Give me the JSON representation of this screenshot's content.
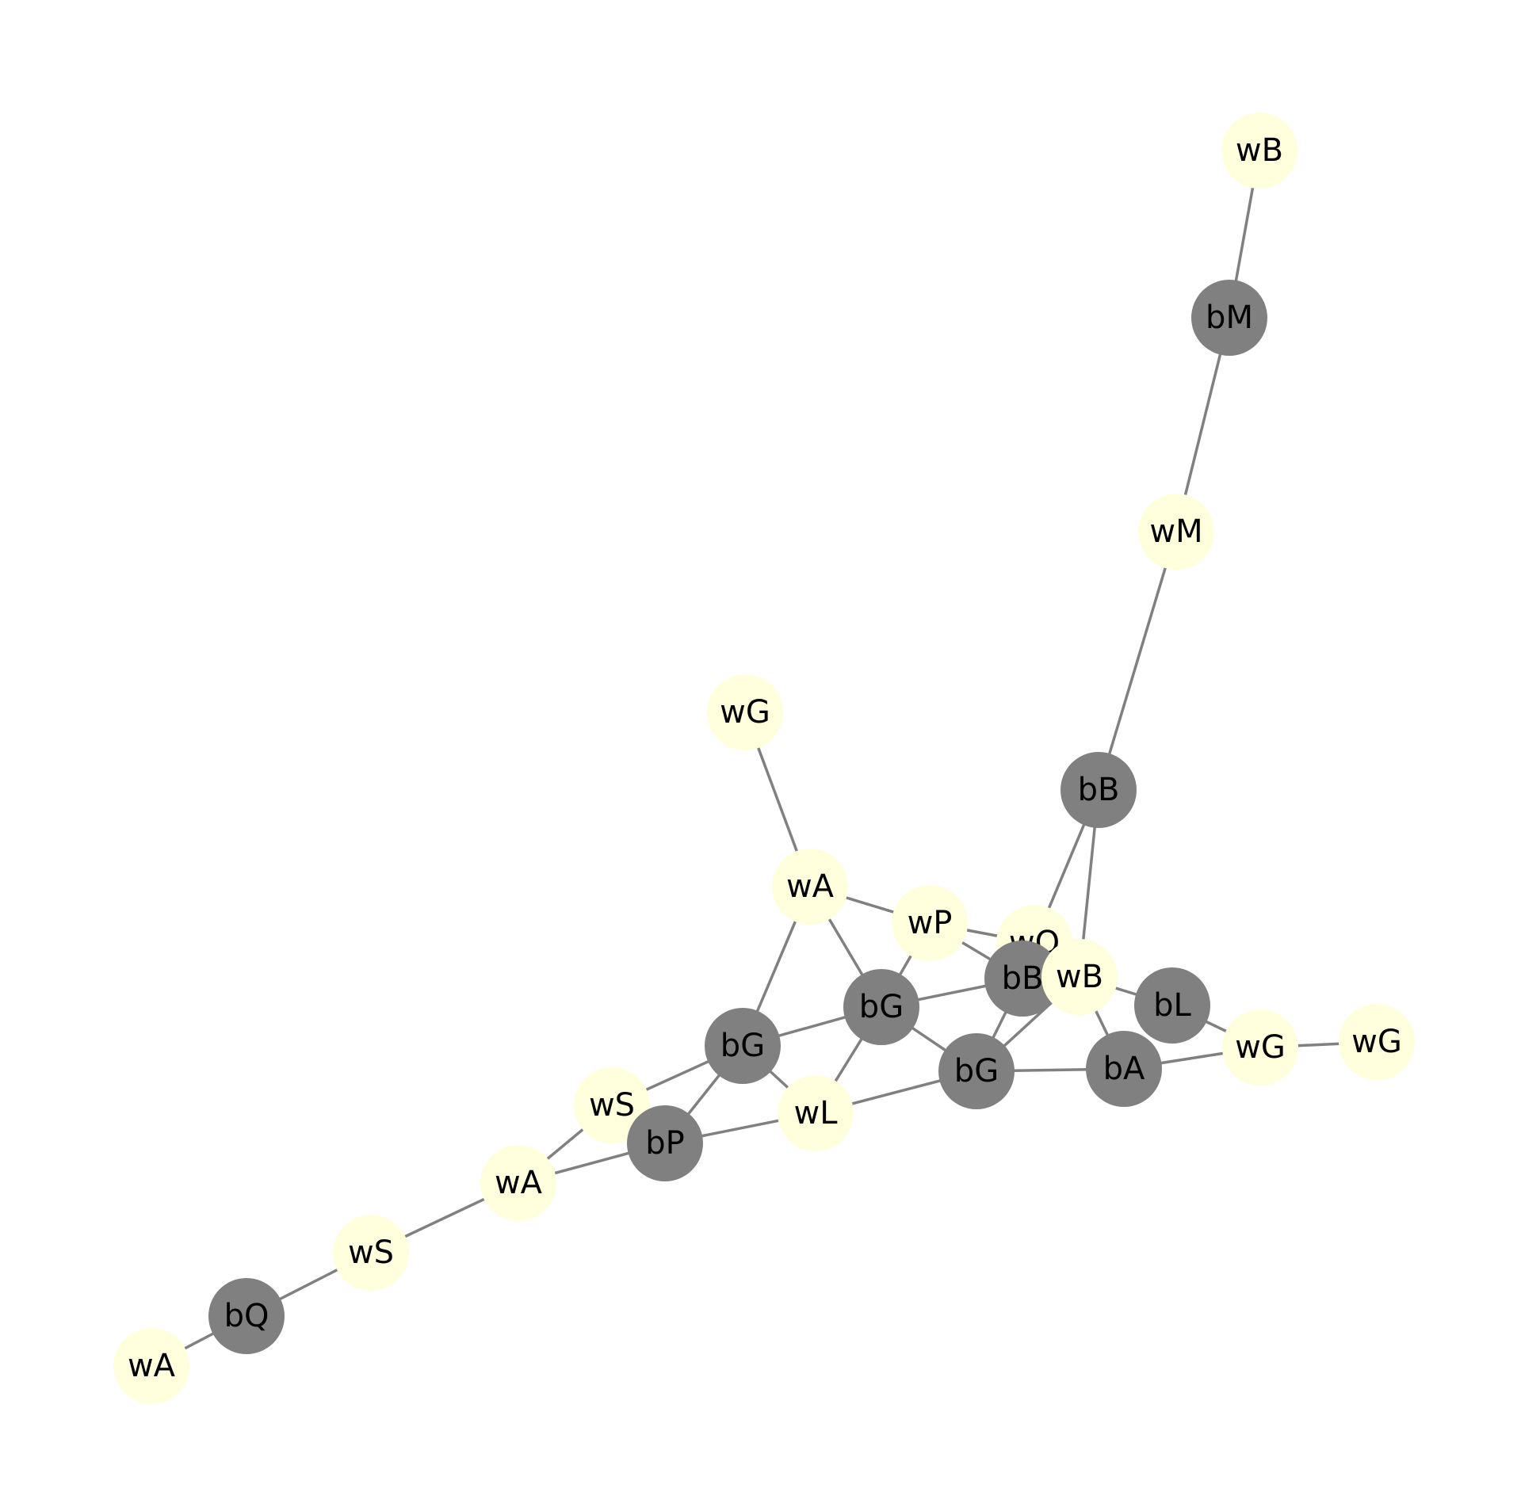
{
  "colors": {
    "white_node": "#ffffdd",
    "black_node": "#808080",
    "edge": "#808080",
    "label": "#000000",
    "background": "#ffffff"
  },
  "nodes": [
    {
      "id": "n1",
      "label": "wB",
      "side": "white"
    },
    {
      "id": "n2",
      "label": "bM",
      "side": "black"
    },
    {
      "id": "n3",
      "label": "wM",
      "side": "white"
    },
    {
      "id": "n4",
      "label": "bB",
      "side": "black"
    },
    {
      "id": "n5",
      "label": "wG",
      "side": "white"
    },
    {
      "id": "n6",
      "label": "wA",
      "side": "white"
    },
    {
      "id": "n7",
      "label": "wP",
      "side": "white"
    },
    {
      "id": "n8",
      "label": "wQ",
      "side": "white"
    },
    {
      "id": "n9",
      "label": "bB",
      "side": "black"
    },
    {
      "id": "n10",
      "label": "wB",
      "side": "white"
    },
    {
      "id": "n11",
      "label": "bL",
      "side": "black"
    },
    {
      "id": "n12",
      "label": "wG",
      "side": "white"
    },
    {
      "id": "n13",
      "label": "wG",
      "side": "white"
    },
    {
      "id": "n14",
      "label": "bA",
      "side": "black"
    },
    {
      "id": "n15",
      "label": "bG",
      "side": "black"
    },
    {
      "id": "n16",
      "label": "bG",
      "side": "black"
    },
    {
      "id": "n17",
      "label": "bG",
      "side": "black"
    },
    {
      "id": "n18",
      "label": "wL",
      "side": "white"
    },
    {
      "id": "n19",
      "label": "wS",
      "side": "white"
    },
    {
      "id": "n20",
      "label": "bP",
      "side": "black"
    },
    {
      "id": "n21",
      "label": "wA",
      "side": "white"
    },
    {
      "id": "n22",
      "label": "wS",
      "side": "white"
    },
    {
      "id": "n23",
      "label": "bQ",
      "side": "black"
    },
    {
      "id": "n24",
      "label": "wA",
      "side": "white"
    }
  ],
  "edges": [
    [
      "n1",
      "n2"
    ],
    [
      "n2",
      "n3"
    ],
    [
      "n3",
      "n4"
    ],
    [
      "n4",
      "n8"
    ],
    [
      "n4",
      "n10"
    ],
    [
      "n5",
      "n6"
    ],
    [
      "n6",
      "n7"
    ],
    [
      "n6",
      "n16"
    ],
    [
      "n6",
      "n17"
    ],
    [
      "n7",
      "n8"
    ],
    [
      "n7",
      "n9"
    ],
    [
      "n7",
      "n16"
    ],
    [
      "n8",
      "n9"
    ],
    [
      "n9",
      "n16"
    ],
    [
      "n9",
      "n15"
    ],
    [
      "n10",
      "n11"
    ],
    [
      "n10",
      "n14"
    ],
    [
      "n10",
      "n15"
    ],
    [
      "n11",
      "n12"
    ],
    [
      "n12",
      "n13"
    ],
    [
      "n12",
      "n14"
    ],
    [
      "n14",
      "n15"
    ],
    [
      "n15",
      "n16"
    ],
    [
      "n15",
      "n18"
    ],
    [
      "n16",
      "n17"
    ],
    [
      "n16",
      "n18"
    ],
    [
      "n17",
      "n18"
    ],
    [
      "n17",
      "n19"
    ],
    [
      "n17",
      "n20"
    ],
    [
      "n18",
      "n20"
    ],
    [
      "n19",
      "n21"
    ],
    [
      "n20",
      "n21"
    ],
    [
      "n21",
      "n22"
    ],
    [
      "n22",
      "n23"
    ],
    [
      "n23",
      "n24"
    ]
  ]
}
